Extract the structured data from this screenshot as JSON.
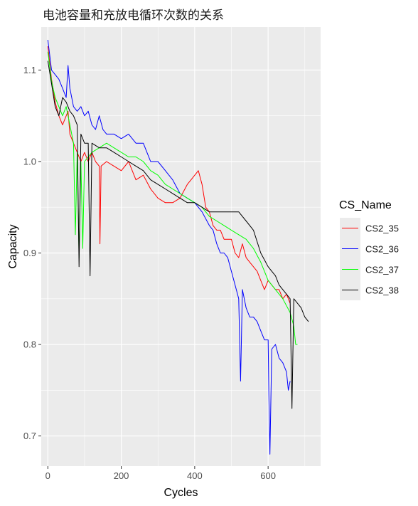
{
  "chart_data": {
    "type": "line",
    "title": "电池容量和充放电循环次数的关系",
    "xlabel": "Cycles",
    "ylabel": "Capacity",
    "xlim": [
      -18,
      743
    ],
    "ylim": [
      0.667,
      1.147
    ],
    "x_ticks": [
      0,
      200,
      400,
      600
    ],
    "y_ticks": [
      0.7,
      0.8,
      0.9,
      1.0,
      1.1
    ],
    "x_tick_labels": [
      "0",
      "200",
      "400",
      "600"
    ],
    "y_tick_labels": [
      "0.7",
      "0.8",
      "0.9",
      "1.0",
      "1.1"
    ],
    "grid": true,
    "background": "#ebebeb",
    "legend": {
      "title": "CS_Name",
      "position": "right"
    },
    "series": [
      {
        "name": "CS2_35",
        "color": "#ff0000",
        "points": [
          [
            0,
            1.126
          ],
          [
            10,
            1.09
          ],
          [
            20,
            1.065
          ],
          [
            30,
            1.05
          ],
          [
            40,
            1.04
          ],
          [
            55,
            1.055
          ],
          [
            60,
            1.03
          ],
          [
            70,
            1.02
          ],
          [
            80,
            1.01
          ],
          [
            90,
            1.0
          ],
          [
            100,
            1.01
          ],
          [
            110,
            1.0
          ],
          [
            120,
            1.01
          ],
          [
            130,
            1.0
          ],
          [
            140,
            0.995
          ],
          [
            142,
            0.91
          ],
          [
            145,
            0.995
          ],
          [
            160,
            1.0
          ],
          [
            180,
            0.995
          ],
          [
            200,
            0.99
          ],
          [
            220,
            1.0
          ],
          [
            240,
            0.98
          ],
          [
            260,
            0.985
          ],
          [
            280,
            0.97
          ],
          [
            300,
            0.96
          ],
          [
            320,
            0.955
          ],
          [
            340,
            0.955
          ],
          [
            360,
            0.96
          ],
          [
            380,
            0.975
          ],
          [
            390,
            0.98
          ],
          [
            410,
            0.99
          ],
          [
            420,
            0.975
          ],
          [
            430,
            0.95
          ],
          [
            440,
            0.945
          ],
          [
            450,
            0.93
          ],
          [
            460,
            0.925
          ],
          [
            470,
            0.925
          ],
          [
            480,
            0.915
          ],
          [
            500,
            0.915
          ],
          [
            510,
            0.9
          ],
          [
            520,
            0.895
          ],
          [
            530,
            0.91
          ],
          [
            540,
            0.895
          ],
          [
            550,
            0.89
          ],
          [
            560,
            0.885
          ],
          [
            570,
            0.88
          ],
          [
            580,
            0.87
          ],
          [
            590,
            0.86
          ],
          [
            600,
            0.87
          ],
          [
            610,
            0.865
          ],
          [
            620,
            0.86
          ],
          [
            630,
            0.86
          ],
          [
            640,
            0.85
          ],
          [
            650,
            0.855
          ],
          [
            660,
            0.845
          ]
        ]
      },
      {
        "name": "CS2_36",
        "color": "#0000ff",
        "points": [
          [
            0,
            1.133
          ],
          [
            10,
            1.1
          ],
          [
            20,
            1.095
          ],
          [
            30,
            1.09
          ],
          [
            40,
            1.08
          ],
          [
            50,
            1.07
          ],
          [
            55,
            1.105
          ],
          [
            60,
            1.08
          ],
          [
            70,
            1.06
          ],
          [
            80,
            1.055
          ],
          [
            90,
            1.06
          ],
          [
            100,
            1.05
          ],
          [
            110,
            1.055
          ],
          [
            120,
            1.04
          ],
          [
            130,
            1.035
          ],
          [
            140,
            1.05
          ],
          [
            150,
            1.035
          ],
          [
            160,
            1.03
          ],
          [
            180,
            1.03
          ],
          [
            200,
            1.025
          ],
          [
            220,
            1.03
          ],
          [
            240,
            1.02
          ],
          [
            260,
            1.02
          ],
          [
            270,
            1.01
          ],
          [
            280,
            1.0
          ],
          [
            300,
            1.0
          ],
          [
            320,
            0.99
          ],
          [
            340,
            0.98
          ],
          [
            360,
            0.965
          ],
          [
            380,
            0.96
          ],
          [
            400,
            0.955
          ],
          [
            420,
            0.945
          ],
          [
            440,
            0.93
          ],
          [
            450,
            0.925
          ],
          [
            460,
            0.91
          ],
          [
            470,
            0.9
          ],
          [
            480,
            0.9
          ],
          [
            490,
            0.895
          ],
          [
            500,
            0.88
          ],
          [
            510,
            0.865
          ],
          [
            520,
            0.85
          ],
          [
            525,
            0.76
          ],
          [
            530,
            0.86
          ],
          [
            540,
            0.84
          ],
          [
            550,
            0.83
          ],
          [
            560,
            0.83
          ],
          [
            570,
            0.825
          ],
          [
            580,
            0.815
          ],
          [
            590,
            0.805
          ],
          [
            600,
            0.805
          ],
          [
            602,
            0.745
          ],
          [
            605,
            0.68
          ],
          [
            610,
            0.795
          ],
          [
            620,
            0.8
          ],
          [
            630,
            0.785
          ],
          [
            640,
            0.78
          ],
          [
            650,
            0.77
          ],
          [
            655,
            0.75
          ],
          [
            660,
            0.76
          ]
        ]
      },
      {
        "name": "CS2_37",
        "color": "#00ff00",
        "points": [
          [
            0,
            1.12
          ],
          [
            10,
            1.088
          ],
          [
            20,
            1.07
          ],
          [
            30,
            1.06
          ],
          [
            40,
            1.05
          ],
          [
            50,
            1.06
          ],
          [
            60,
            1.04
          ],
          [
            70,
            1.02
          ],
          [
            75,
            0.92
          ],
          [
            80,
            1.01
          ],
          [
            85,
            0.895
          ],
          [
            90,
            1.0
          ],
          [
            95,
            0.905
          ],
          [
            100,
            1.0
          ],
          [
            110,
            1.005
          ],
          [
            120,
            1.01
          ],
          [
            140,
            1.015
          ],
          [
            160,
            1.02
          ],
          [
            180,
            1.015
          ],
          [
            200,
            1.01
          ],
          [
            220,
            1.005
          ],
          [
            240,
            1.005
          ],
          [
            260,
            1.0
          ],
          [
            280,
            0.99
          ],
          [
            300,
            0.985
          ],
          [
            320,
            0.975
          ],
          [
            340,
            0.97
          ],
          [
            360,
            0.965
          ],
          [
            380,
            0.96
          ],
          [
            400,
            0.955
          ],
          [
            420,
            0.95
          ],
          [
            440,
            0.94
          ],
          [
            460,
            0.935
          ],
          [
            480,
            0.93
          ],
          [
            500,
            0.925
          ],
          [
            520,
            0.92
          ],
          [
            540,
            0.915
          ],
          [
            560,
            0.905
          ],
          [
            580,
            0.89
          ],
          [
            600,
            0.87
          ],
          [
            620,
            0.86
          ],
          [
            640,
            0.85
          ],
          [
            660,
            0.835
          ],
          [
            670,
            0.82
          ],
          [
            675,
            0.8
          ],
          [
            680,
            0.8
          ]
        ]
      },
      {
        "name": "CS2_38",
        "color": "#000000",
        "points": [
          [
            0,
            1.11
          ],
          [
            10,
            1.085
          ],
          [
            20,
            1.06
          ],
          [
            30,
            1.05
          ],
          [
            40,
            1.07
          ],
          [
            50,
            1.065
          ],
          [
            60,
            1.055
          ],
          [
            70,
            1.05
          ],
          [
            80,
            1.04
          ],
          [
            85,
            0.885
          ],
          [
            90,
            1.03
          ],
          [
            100,
            1.02
          ],
          [
            110,
            1.02
          ],
          [
            115,
            0.875
          ],
          [
            120,
            1.02
          ],
          [
            140,
            1.015
          ],
          [
            160,
            1.015
          ],
          [
            180,
            1.01
          ],
          [
            200,
            1.005
          ],
          [
            220,
            1.0
          ],
          [
            240,
            0.995
          ],
          [
            260,
            0.99
          ],
          [
            280,
            0.98
          ],
          [
            300,
            0.975
          ],
          [
            320,
            0.97
          ],
          [
            340,
            0.965
          ],
          [
            360,
            0.96
          ],
          [
            380,
            0.955
          ],
          [
            400,
            0.955
          ],
          [
            420,
            0.95
          ],
          [
            440,
            0.945
          ],
          [
            460,
            0.945
          ],
          [
            480,
            0.945
          ],
          [
            500,
            0.945
          ],
          [
            520,
            0.945
          ],
          [
            540,
            0.935
          ],
          [
            560,
            0.925
          ],
          [
            580,
            0.9
          ],
          [
            600,
            0.885
          ],
          [
            620,
            0.875
          ],
          [
            630,
            0.865
          ],
          [
            640,
            0.86
          ],
          [
            650,
            0.855
          ],
          [
            660,
            0.85
          ],
          [
            665,
            0.73
          ],
          [
            670,
            0.85
          ],
          [
            680,
            0.845
          ],
          [
            690,
            0.84
          ],
          [
            700,
            0.83
          ],
          [
            710,
            0.825
          ]
        ]
      }
    ]
  }
}
